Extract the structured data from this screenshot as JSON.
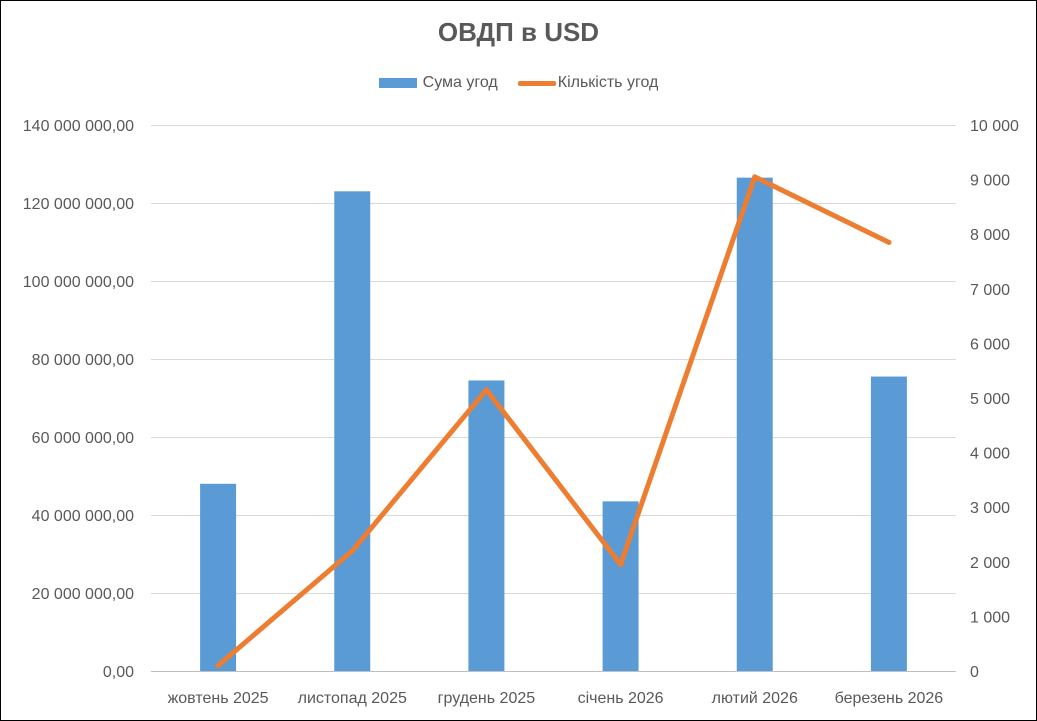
{
  "chart_data": {
    "type": "bar",
    "title": "ОВДП в USD",
    "categories": [
      "жовтень 2025",
      "листопад 2025",
      "грудень 2025",
      "січень 2026",
      "лютий 2026",
      "березень 2026"
    ],
    "series": [
      {
        "name": "Сума угод",
        "type": "bar",
        "axis": "left",
        "color": "#5b9bd5",
        "values": [
          48000000,
          123000000,
          74500000,
          43500000,
          126500000,
          75500000
        ]
      },
      {
        "name": "Кількість угод",
        "type": "line",
        "axis": "right",
        "color": "#ed7d31",
        "values": [
          100,
          2200,
          5150,
          1950,
          9050,
          7850
        ]
      }
    ],
    "y_left": {
      "lim": [
        0,
        140000000
      ],
      "ticks": [
        0,
        20000000,
        40000000,
        60000000,
        80000000,
        100000000,
        120000000,
        140000000
      ],
      "tick_labels": [
        "0,00",
        "20 000 000,00",
        "40 000 000,00",
        "60 000 000,00",
        "80 000 000,00",
        "100 000 000,00",
        "120 000 000,00",
        "140 000 000,00"
      ]
    },
    "y_right": {
      "lim": [
        0,
        10000
      ],
      "ticks": [
        0,
        1000,
        2000,
        3000,
        4000,
        5000,
        6000,
        7000,
        8000,
        9000,
        10000
      ],
      "tick_labels": [
        "0",
        "1 000",
        "2 000",
        "3 000",
        "4 000",
        "5 000",
        "6 000",
        "7 000",
        "8 000",
        "9 000",
        "10 000"
      ]
    },
    "grid": true,
    "legend_position": "top"
  }
}
